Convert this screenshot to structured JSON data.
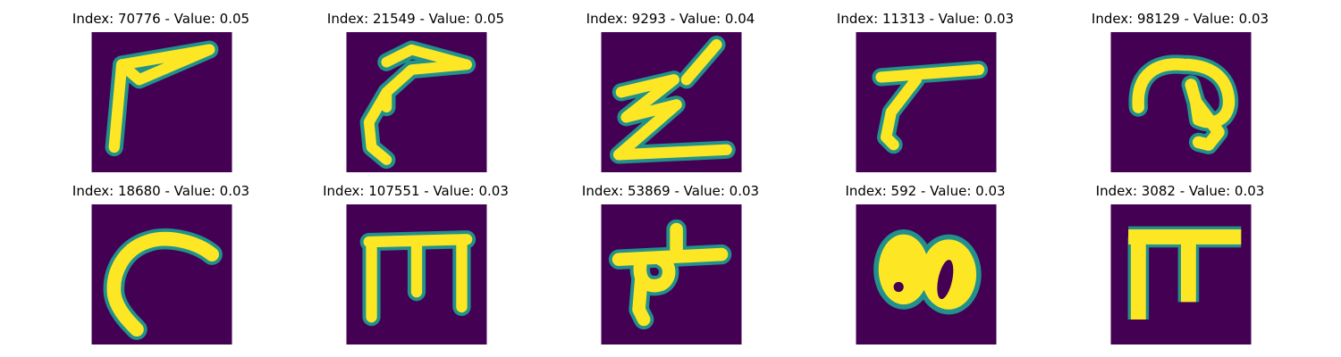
{
  "figure": {
    "panels": [
      {
        "title": "Index: 70776 - Value: 0.05",
        "glyph": "angled-flag-stroke"
      },
      {
        "title": "Index: 21549 - Value: 0.05",
        "glyph": "hooked-stroke"
      },
      {
        "title": "Index: 9293 - Value: 0.04",
        "glyph": "z-zigzag"
      },
      {
        "title": "Index: 11313 - Value: 0.03",
        "glyph": "angled-stroke"
      },
      {
        "title": "Index: 98129 - Value: 0.03",
        "glyph": "curled-loop"
      },
      {
        "title": "Index: 18680 - Value: 0.03",
        "glyph": "c-curve"
      },
      {
        "title": "Index: 107551 - Value: 0.03",
        "glyph": "comb-e"
      },
      {
        "title": "Index: 53869 - Value: 0.03",
        "glyph": "cross-blob"
      },
      {
        "title": "Index: 592 - Value: 0.03",
        "glyph": "double-o"
      },
      {
        "title": "Index: 3082 - Value: 0.03",
        "glyph": "pi-shape"
      }
    ],
    "colors": {
      "background": "#440154",
      "stroke": "#fde725",
      "edge": "#21918c"
    }
  }
}
